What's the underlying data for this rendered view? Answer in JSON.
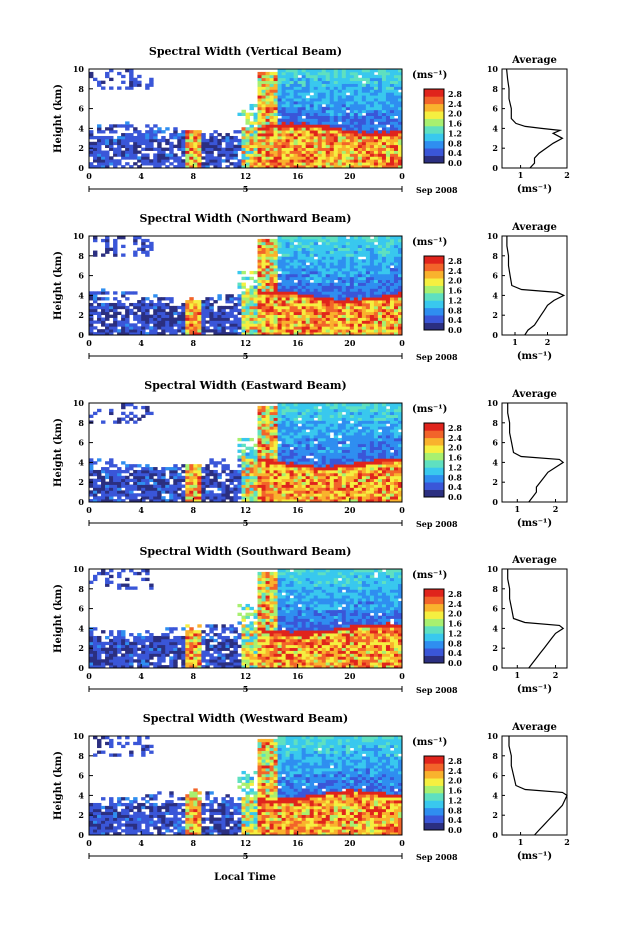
{
  "figure": {
    "xlabel": "Local Time",
    "date_label": "Sep 2008",
    "day_marker": "5",
    "unit": "(ms⁻¹)",
    "average_title": "Average"
  },
  "colors": {
    "colormap": [
      "#2b2f80",
      "#3a56d8",
      "#2f8ef0",
      "#39c8ee",
      "#5fe0c0",
      "#a8f070",
      "#f5ef40",
      "#f9b22d",
      "#f2642a",
      "#e0241c"
    ]
  },
  "chart_data": [
    {
      "type": "heatmap",
      "title": "Spectral Width (Vertical Beam)",
      "xlabel": "Local Time",
      "ylabel": "Height (km)",
      "x_ticks": [
        "0",
        "4",
        "8",
        "12",
        "16",
        "20",
        "0"
      ],
      "xlim": [
        0,
        24
      ],
      "y_ticks": [
        "0",
        "2",
        "4",
        "6",
        "8",
        "10"
      ],
      "ylim": [
        0,
        10
      ],
      "colorbar": {
        "label": "(ms⁻¹)",
        "ticks": [
          "0.0",
          "0.4",
          "0.8",
          "1.2",
          "1.6",
          "2.0",
          "2.4",
          "2.8"
        ],
        "range": [
          0,
          3.0
        ]
      },
      "average_profile": {
        "title": "Average",
        "xlabel": "(ms⁻¹)",
        "x_ticks": [
          "1",
          "2"
        ],
        "xlim": [
          0.6,
          2.0
        ],
        "heights": [
          0,
          0.5,
          1,
          1.5,
          2,
          2.5,
          3,
          3.5,
          3.8,
          4,
          4.2,
          4.5,
          5,
          6,
          7,
          8,
          9,
          10
        ],
        "values": [
          1.2,
          1.3,
          1.3,
          1.4,
          1.55,
          1.7,
          1.9,
          1.7,
          1.85,
          1.45,
          1.1,
          0.9,
          0.8,
          0.8,
          0.75,
          0.75,
          0.72,
          0.7
        ]
      }
    },
    {
      "type": "heatmap",
      "title": "Spectral Width (Northward Beam)",
      "xlabel": "Local Time",
      "ylabel": "Height (km)",
      "x_ticks": [
        "0",
        "4",
        "8",
        "12",
        "16",
        "20",
        "0"
      ],
      "xlim": [
        0,
        24
      ],
      "y_ticks": [
        "0",
        "2",
        "4",
        "6",
        "8",
        "10"
      ],
      "ylim": [
        0,
        10
      ],
      "colorbar": {
        "label": "(ms⁻¹)",
        "ticks": [
          "0.0",
          "0.4",
          "0.8",
          "1.2",
          "1.6",
          "2.0",
          "2.4",
          "2.8"
        ],
        "range": [
          0,
          3.0
        ]
      },
      "average_profile": {
        "title": "Average",
        "xlabel": "(ms⁻¹)",
        "x_ticks": [
          "1",
          "2"
        ],
        "xlim": [
          0.6,
          2.6
        ],
        "heights": [
          0,
          0.5,
          1,
          1.5,
          2,
          2.5,
          3,
          3.5,
          4,
          4.3,
          4.6,
          5,
          6,
          7,
          8,
          9,
          10
        ],
        "values": [
          1.3,
          1.4,
          1.6,
          1.7,
          1.8,
          1.9,
          2.0,
          2.2,
          2.5,
          2.3,
          1.2,
          0.9,
          0.85,
          0.8,
          0.8,
          0.75,
          0.75
        ]
      }
    },
    {
      "type": "heatmap",
      "title": "Spectral Width (Eastward Beam)",
      "xlabel": "Local Time",
      "ylabel": "Height (km)",
      "x_ticks": [
        "0",
        "4",
        "8",
        "12",
        "16",
        "20",
        "0"
      ],
      "xlim": [
        0,
        24
      ],
      "y_ticks": [
        "0",
        "2",
        "4",
        "6",
        "8",
        "10"
      ],
      "ylim": [
        0,
        10
      ],
      "colorbar": {
        "label": "(ms⁻¹)",
        "ticks": [
          "0.0",
          "0.4",
          "0.8",
          "1.2",
          "1.6",
          "2.0",
          "2.4",
          "2.8"
        ],
        "range": [
          0,
          3.0
        ]
      },
      "average_profile": {
        "title": "Average",
        "xlabel": "(ms⁻¹)",
        "x_ticks": [
          "1",
          "2"
        ],
        "xlim": [
          0.6,
          2.3
        ],
        "heights": [
          0,
          0.5,
          1,
          1.5,
          2,
          2.5,
          3,
          3.5,
          4,
          4.3,
          4.6,
          5,
          6,
          7,
          8,
          9,
          10
        ],
        "values": [
          1.3,
          1.4,
          1.5,
          1.5,
          1.6,
          1.7,
          1.8,
          2.0,
          2.2,
          2.1,
          1.1,
          0.9,
          0.85,
          0.8,
          0.8,
          0.75,
          0.75
        ]
      }
    },
    {
      "type": "heatmap",
      "title": "Spectral Width (Southward Beam)",
      "xlabel": "Local Time",
      "ylabel": "Height (km)",
      "x_ticks": [
        "0",
        "4",
        "8",
        "12",
        "16",
        "20",
        "0"
      ],
      "xlim": [
        0,
        24
      ],
      "y_ticks": [
        "0",
        "2",
        "4",
        "6",
        "8",
        "10"
      ],
      "ylim": [
        0,
        10
      ],
      "colorbar": {
        "label": "(ms⁻¹)",
        "ticks": [
          "0.0",
          "0.4",
          "0.8",
          "1.2",
          "1.6",
          "2.0",
          "2.4",
          "2.8"
        ],
        "range": [
          0,
          3.0
        ]
      },
      "average_profile": {
        "title": "Average",
        "xlabel": "(ms⁻¹)",
        "x_ticks": [
          "1",
          "2"
        ],
        "xlim": [
          0.6,
          2.3
        ],
        "heights": [
          0,
          0.5,
          1,
          1.5,
          2,
          2.5,
          3,
          3.5,
          4,
          4.3,
          4.6,
          5,
          6,
          7,
          8,
          9,
          10
        ],
        "values": [
          1.3,
          1.4,
          1.5,
          1.6,
          1.7,
          1.8,
          1.9,
          2.0,
          2.2,
          2.1,
          1.2,
          0.9,
          0.85,
          0.8,
          0.8,
          0.75,
          0.75
        ]
      }
    },
    {
      "type": "heatmap",
      "title": "Spectral Width (Westward Beam)",
      "xlabel": "Local Time",
      "ylabel": "Height (km)",
      "x_ticks": [
        "0",
        "4",
        "8",
        "12",
        "16",
        "20",
        "0"
      ],
      "xlim": [
        0,
        24
      ],
      "y_ticks": [
        "0",
        "2",
        "4",
        "6",
        "8",
        "10"
      ],
      "ylim": [
        0,
        10
      ],
      "colorbar": {
        "label": "(ms⁻¹)",
        "ticks": [
          "0.0",
          "0.4",
          "0.8",
          "1.2",
          "1.6",
          "2.0",
          "2.4",
          "2.8"
        ],
        "range": [
          0,
          3.0
        ]
      },
      "average_profile": {
        "title": "Average",
        "xlabel": "(ms⁻¹)",
        "x_ticks": [
          "1",
          "2"
        ],
        "xlim": [
          0.6,
          2.0
        ],
        "heights": [
          0,
          0.5,
          1,
          1.5,
          2,
          2.5,
          3,
          3.5,
          4,
          4.3,
          4.6,
          5,
          6,
          7,
          8,
          9,
          10
        ],
        "values": [
          1.3,
          1.4,
          1.5,
          1.6,
          1.7,
          1.8,
          1.9,
          1.95,
          2.0,
          1.9,
          1.1,
          0.9,
          0.85,
          0.8,
          0.8,
          0.75,
          0.75
        ]
      }
    }
  ]
}
